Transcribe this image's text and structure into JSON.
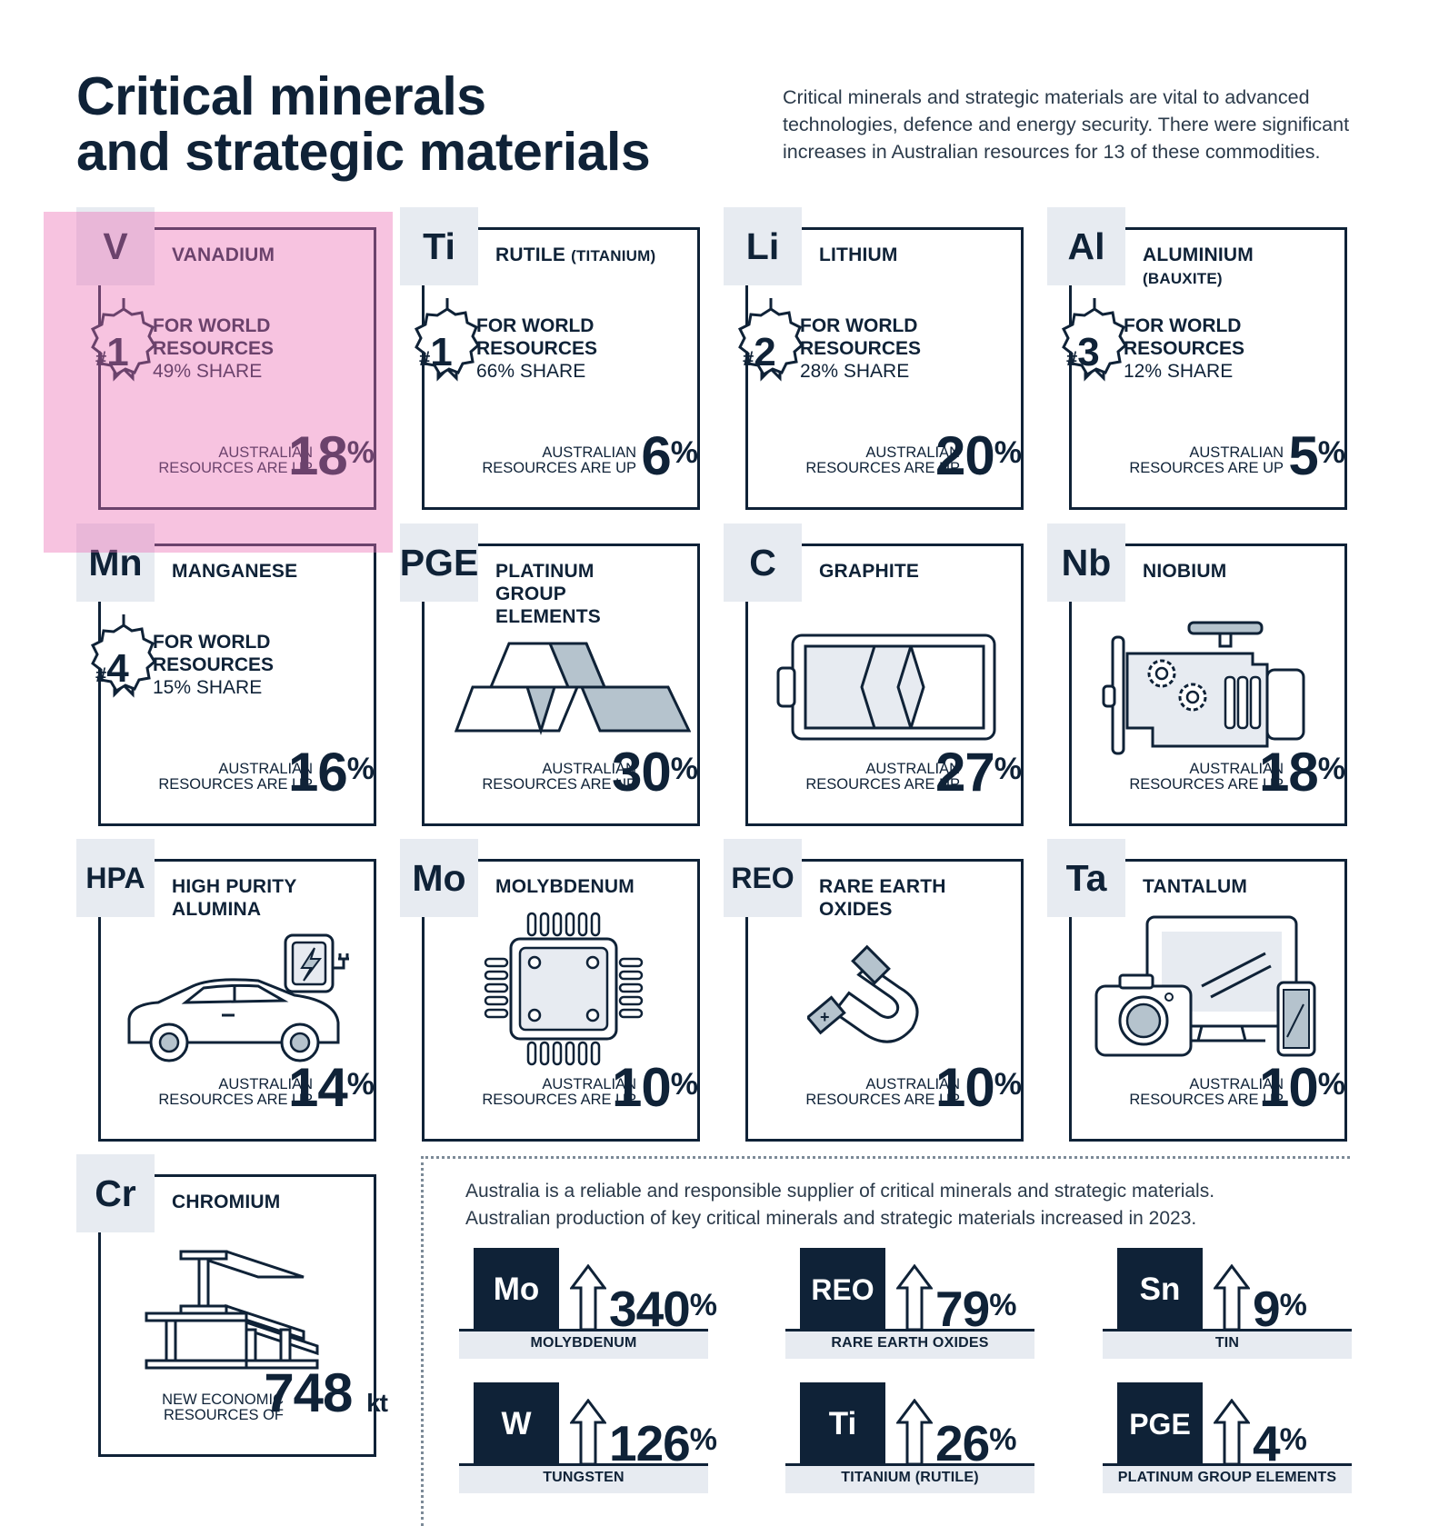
{
  "header": {
    "title_line1": "Critical minerals",
    "title_line2": "and strategic materials",
    "intro": "Critical minerals and strategic materials are vital to advanced technologies, defence and energy security. There were significant increases in Australian resources for 13 of these commodities."
  },
  "up_label_line1": "AUSTRALIAN",
  "up_label_line2": "RESOURCES ARE UP",
  "rank_line1": "FOR WORLD",
  "rank_line2": "RESOURCES",
  "cards": [
    {
      "symbol": "V",
      "name": "VANADIUM",
      "rank": "1",
      "share": "49% SHARE",
      "pct": "18",
      "pct_sign": "%"
    },
    {
      "symbol": "Ti",
      "name": "RUTILE",
      "name_suffix": "(TITANIUM)",
      "rank": "1",
      "share": "66% SHARE",
      "pct": "6",
      "pct_sign": "%"
    },
    {
      "symbol": "Li",
      "name": "LITHIUM",
      "rank": "2",
      "share": "28% SHARE",
      "pct": "20",
      "pct_sign": "%"
    },
    {
      "symbol": "Al",
      "name": "ALUMINIUM",
      "name_suffix": "(BAUXITE)",
      "rank": "3",
      "share": "12% SHARE",
      "pct": "5",
      "pct_sign": "%"
    },
    {
      "symbol": "Mn",
      "name": "MANGANESE",
      "rank": "4",
      "share": "15% SHARE",
      "pct": "16",
      "pct_sign": "%"
    },
    {
      "symbol": "PGE",
      "name": "PLATINUM GROUP ELEMENTS",
      "pct": "30",
      "pct_sign": "%",
      "icon": "gold-bars-icon"
    },
    {
      "symbol": "C",
      "name": "GRAPHITE",
      "pct": "27",
      "pct_sign": "%",
      "icon": "battery-icon"
    },
    {
      "symbol": "Nb",
      "name": "NIOBIUM",
      "pct": "18",
      "pct_sign": "%",
      "icon": "engine-icon"
    },
    {
      "symbol": "HPA",
      "name": "HIGH PURITY ALUMINA",
      "pct": "14",
      "pct_sign": "%",
      "icon": "electric-car-icon"
    },
    {
      "symbol": "Mo",
      "name": "MOLYBDENUM",
      "pct": "10",
      "pct_sign": "%",
      "icon": "microchip-icon"
    },
    {
      "symbol": "REO",
      "name": "RARE EARTH OXIDES",
      "pct": "10",
      "pct_sign": "%",
      "icon": "magnet-icon"
    },
    {
      "symbol": "Ta",
      "name": "TANTALUM",
      "pct": "10",
      "pct_sign": "%",
      "icon": "devices-icon"
    },
    {
      "symbol": "Cr",
      "name": "CHROMIUM",
      "label_line1": "NEW ECONOMIC",
      "label_line2": "RESOURCES OF",
      "value": "748",
      "unit": "kt",
      "icon": "steel-beams-icon"
    }
  ],
  "production": {
    "text_line1": "Australia is a reliable and responsible supplier of critical minerals and strategic materials.",
    "text_line2": "Australian production of key critical minerals and strategic materials increased in 2023.",
    "items": [
      {
        "symbol": "Mo",
        "pct": "340",
        "sign": "%",
        "label": "MOLYBDENUM"
      },
      {
        "symbol": "REO",
        "pct": "79",
        "sign": "%",
        "label": "RARE EARTH OXIDES"
      },
      {
        "symbol": "Sn",
        "pct": "9",
        "sign": "%",
        "label": "TIN"
      },
      {
        "symbol": "W",
        "pct": "126",
        "sign": "%",
        "label": "TUNGSTEN"
      },
      {
        "symbol": "Ti",
        "pct": "26",
        "sign": "%",
        "label": "TITANIUM (RUTILE)"
      },
      {
        "symbol": "PGE",
        "pct": "4",
        "sign": "%",
        "label": "PLATINUM GROUP ELEMENTS"
      }
    ]
  },
  "colors": {
    "navy": "#0f2237",
    "pale_box": "#e7ebf1",
    "icon_fill": "#b5c3cd",
    "highlight": "#ec70b4"
  }
}
